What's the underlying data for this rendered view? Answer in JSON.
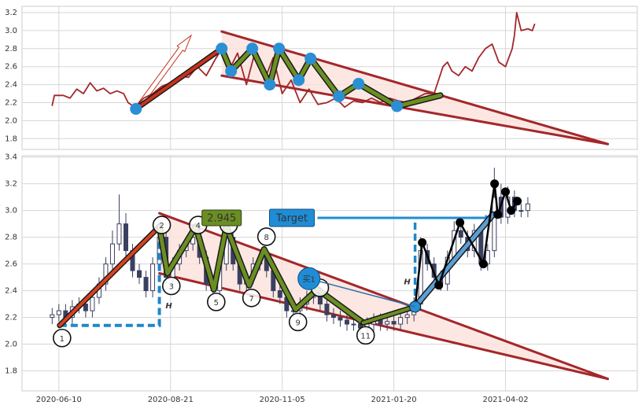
{
  "chart_data": [
    {
      "type": "line",
      "x": [
        -3,
        -2,
        2,
        5,
        8,
        11,
        14,
        17,
        20,
        23,
        26,
        29,
        31,
        34,
        38,
        42,
        46,
        50,
        54,
        58,
        62,
        66,
        70,
        73,
        76,
        80,
        84,
        88,
        92,
        96,
        100,
        104,
        108,
        112,
        116,
        120,
        124,
        128,
        132,
        136,
        140,
        144,
        148,
        152,
        156,
        160,
        164,
        168,
        170,
        172,
        174,
        176,
        179,
        182,
        185,
        188,
        191,
        194,
        197,
        200,
        203,
        204,
        205,
        207,
        210,
        212,
        213
      ],
      "values": [
        2.17,
        2.28,
        2.28,
        2.25,
        2.35,
        2.3,
        2.42,
        2.33,
        2.36,
        2.3,
        2.33,
        2.3,
        2.2,
        2.15,
        2.25,
        2.3,
        2.38,
        2.42,
        2.5,
        2.48,
        2.6,
        2.5,
        2.68,
        2.8,
        2.55,
        2.75,
        2.4,
        2.78,
        2.45,
        2.7,
        2.3,
        2.45,
        2.2,
        2.35,
        2.18,
        2.2,
        2.25,
        2.15,
        2.22,
        2.2,
        2.25,
        2.2,
        2.25,
        2.22,
        2.2,
        2.25,
        2.3,
        2.3,
        2.45,
        2.6,
        2.65,
        2.55,
        2.5,
        2.6,
        2.55,
        2.7,
        2.8,
        2.85,
        2.65,
        2.6,
        2.8,
        2.95,
        3.2,
        3.0,
        3.02,
        3.0,
        3.07
      ],
      "color": "#a3272a",
      "xlim": [
        -16.5,
        259
      ],
      "ylim": [
        1.68,
        3.27
      ],
      "xticks": [
        0,
        50,
        100,
        150,
        200
      ],
      "yticks": [
        1.8,
        {
          "value": 2,
          "label": "2.0"
        },
        2.2,
        2.4,
        2.6,
        2.8,
        {
          "value": 3,
          "label": "3.0"
        },
        3.2
      ],
      "grid": true,
      "trend_line": {
        "x": [
          34.5,
          72.9
        ],
        "values": [
          2.13,
          2.8
        ],
        "color": "#c8321c"
      },
      "zigzag": {
        "x": [
          72.9,
          77.1,
          86.6,
          94.4,
          98.6,
          107.4,
          112.7,
          125.4,
          134.2,
          151.4,
          170.8
        ],
        "values": [
          2.8,
          2.55,
          2.8,
          2.4,
          2.8,
          2.45,
          2.69,
          2.27,
          2.41,
          2.16,
          2.28
        ],
        "color": "#6b8e23"
      },
      "points": {
        "x": [
          34.5,
          72.9,
          77.1,
          86.6,
          94.4,
          98.6,
          107.4,
          112.7,
          125.4,
          134.2,
          151.4
        ],
        "values": [
          2.13,
          2.8,
          2.55,
          2.8,
          2.4,
          2.8,
          2.45,
          2.69,
          2.27,
          2.41,
          2.16
        ],
        "color": "#2a8fd4"
      },
      "triangle": {
        "x": [
          72.9,
          245.8
        ],
        "upper": [
          2.99,
          1.74
        ],
        "lower": [
          2.5,
          1.74
        ],
        "color": "#a3272a",
        "fill": "#fbe1dc"
      }
    },
    {
      "type": "candlestick",
      "x": [
        -3,
        0,
        3,
        6,
        9,
        12,
        15,
        18,
        21,
        24,
        27,
        30,
        33,
        36,
        39,
        42,
        45,
        48,
        51,
        54,
        57,
        60,
        63,
        66,
        69,
        72,
        75,
        78,
        81,
        84,
        87,
        90,
        93,
        96,
        99,
        102,
        105,
        108,
        111,
        114,
        117,
        120,
        123,
        126,
        129,
        132,
        135,
        138,
        141,
        144,
        147,
        150,
        153,
        156,
        159,
        162,
        165,
        168,
        171,
        174,
        177,
        180,
        183,
        186,
        189,
        192,
        195,
        198,
        201,
        204,
        207,
        210
      ],
      "open": [
        2.2,
        2.22,
        2.25,
        2.2,
        2.28,
        2.3,
        2.25,
        2.35,
        2.45,
        2.6,
        2.75,
        2.9,
        2.7,
        2.55,
        2.5,
        2.4,
        2.6,
        2.8,
        2.5,
        2.6,
        2.7,
        2.75,
        2.8,
        2.65,
        2.45,
        2.4,
        2.6,
        2.8,
        2.6,
        2.45,
        2.5,
        2.6,
        2.65,
        2.55,
        2.4,
        2.35,
        2.25,
        2.25,
        2.3,
        2.35,
        2.38,
        2.3,
        2.22,
        2.2,
        2.18,
        2.15,
        2.15,
        2.12,
        2.15,
        2.18,
        2.15,
        2.17,
        2.15,
        2.2,
        2.22,
        2.3,
        2.7,
        2.6,
        2.5,
        2.45,
        2.65,
        2.85,
        2.8,
        2.7,
        2.85,
        2.6,
        2.7,
        3.1,
        2.95,
        3.1,
        3.0,
        3.0
      ],
      "close": [
        2.22,
        2.25,
        2.2,
        2.28,
        2.3,
        2.25,
        2.35,
        2.45,
        2.6,
        2.75,
        2.9,
        2.7,
        2.55,
        2.5,
        2.4,
        2.6,
        2.8,
        2.5,
        2.6,
        2.7,
        2.75,
        2.8,
        2.65,
        2.45,
        2.4,
        2.6,
        2.8,
        2.6,
        2.45,
        2.5,
        2.6,
        2.65,
        2.55,
        2.4,
        2.35,
        2.25,
        2.25,
        2.3,
        2.35,
        2.38,
        2.3,
        2.22,
        2.2,
        2.18,
        2.15,
        2.15,
        2.12,
        2.15,
        2.18,
        2.15,
        2.17,
        2.15,
        2.2,
        2.22,
        2.3,
        2.7,
        2.6,
        2.5,
        2.45,
        2.65,
        2.85,
        2.8,
        2.7,
        2.85,
        2.6,
        2.7,
        3.1,
        2.95,
        3.1,
        3.0,
        3.0,
        3.05
      ],
      "high": [
        2.27,
        2.3,
        2.3,
        2.33,
        2.35,
        2.35,
        2.4,
        2.5,
        2.65,
        2.85,
        3.12,
        2.98,
        2.75,
        2.6,
        2.55,
        2.65,
        2.88,
        2.85,
        2.65,
        2.75,
        2.8,
        2.85,
        2.85,
        2.7,
        2.5,
        2.65,
        2.85,
        2.85,
        2.65,
        2.55,
        2.65,
        2.7,
        2.7,
        2.6,
        2.45,
        2.4,
        2.3,
        2.35,
        2.4,
        2.43,
        2.43,
        2.35,
        2.27,
        2.25,
        2.22,
        2.2,
        2.2,
        2.2,
        2.23,
        2.23,
        2.22,
        2.22,
        2.25,
        2.27,
        2.35,
        2.8,
        2.75,
        2.65,
        2.55,
        2.7,
        2.92,
        2.9,
        2.85,
        2.9,
        2.9,
        2.75,
        3.32,
        3.2,
        3.18,
        3.15,
        3.05,
        3.1
      ],
      "low": [
        2.15,
        2.17,
        2.15,
        2.15,
        2.23,
        2.2,
        2.2,
        2.3,
        2.4,
        2.55,
        2.7,
        2.65,
        2.5,
        2.45,
        2.35,
        2.35,
        2.55,
        2.45,
        2.45,
        2.55,
        2.65,
        2.7,
        2.6,
        2.4,
        2.35,
        2.35,
        2.55,
        2.55,
        2.4,
        2.4,
        2.45,
        2.55,
        2.5,
        2.35,
        2.3,
        2.2,
        2.2,
        2.2,
        2.25,
        2.3,
        2.25,
        2.17,
        2.15,
        2.13,
        2.1,
        2.1,
        2.07,
        2.07,
        2.1,
        2.1,
        2.1,
        2.1,
        2.1,
        2.15,
        2.17,
        2.25,
        2.55,
        2.45,
        2.4,
        2.4,
        2.6,
        2.75,
        2.65,
        2.65,
        2.55,
        2.55,
        2.65,
        2.9,
        2.9,
        2.95,
        2.95,
        2.95
      ],
      "color": "#3b4060",
      "xlim": [
        -16.5,
        259
      ],
      "ylim": [
        1.65,
        3.41
      ],
      "xticks": [
        {
          "value": 0,
          "label": "2020-06-10"
        },
        {
          "value": 50,
          "label": "2020-08-21"
        },
        {
          "value": 100,
          "label": "2020-11-05"
        },
        {
          "value": 150,
          "label": "2021-01-20"
        },
        {
          "value": 200,
          "label": "2021-04-02"
        }
      ],
      "yticks": [
        1.8,
        {
          "value": 2,
          "label": "2.0"
        },
        2.2,
        2.4,
        2.6,
        2.8,
        {
          "value": 3,
          "label": "3.0"
        },
        3.2,
        3.4
      ],
      "grid": true,
      "triangle": {
        "x": [
          45,
          245.8
        ],
        "upper": [
          2.98,
          1.74
        ],
        "lower": [
          2.53,
          1.74
        ],
        "color": "#a3272a",
        "fill": "#fbe1dc"
      },
      "trend_line": {
        "x": [
          0.35,
          45
        ],
        "values": [
          2.14,
          2.88
        ],
        "color": "#d9421e"
      },
      "zigzag": {
        "x": [
          45,
          48.6,
          61.3,
          69.4,
          75,
          85.2,
          91.9,
          106,
          115.8,
          136.3
        ],
        "values": [
          2.88,
          2.53,
          2.88,
          2.41,
          2.88,
          2.44,
          2.71,
          2.26,
          2.41,
          2.16
        ],
        "color": "#6b8e23"
      },
      "breakout_line": {
        "x": [
          136.3,
          159.5
        ],
        "values": [
          2.16,
          2.28
        ],
        "color": "#6b8e23"
      },
      "buy_line": {
        "x": [
          159.5,
          194.4
        ],
        "values": [
          2.28,
          2.97
        ],
        "color": "#5a9fd6"
      },
      "buy_zigzag": {
        "x": [
          159.5,
          162.7,
          170.1,
          179.6,
          190.1,
          195.1,
          196.5,
          200,
          202.5,
          205.3
        ],
        "values": [
          2.28,
          2.76,
          2.44,
          2.91,
          2.6,
          3.2,
          2.97,
          3.14,
          3.0,
          3.07
        ],
        "color": "#000000"
      },
      "pivots": {
        "x": [
          0.35,
          45,
          48.6,
          61.3,
          69.4,
          75,
          85.2,
          91.9,
          106,
          115.8,
          136.3
        ],
        "values": [
          2.14,
          2.88,
          2.53,
          2.88,
          2.41,
          2.88,
          2.44,
          2.71,
          2.26,
          2.41,
          2.16
        ],
        "labels": [
          "1",
          "2",
          "3",
          "4",
          "5",
          null,
          "7",
          "8",
          "9",
          null,
          "11"
        ]
      },
      "height_marker": {
        "x": [
          0.35,
          45
        ],
        "values": [
          2.14,
          2.88
        ],
        "label": "H"
      },
      "target": {
        "x": [
          115.8,
          159.5,
          194.4
        ],
        "value": 2.945,
        "value_label": "2.945",
        "label": "Target",
        "base": 2.28,
        "height_label": "H"
      },
      "buy_signal": {
        "x": 112,
        "value": 2.49,
        "label": "买1",
        "color": "#1f8dd6"
      }
    }
  ]
}
